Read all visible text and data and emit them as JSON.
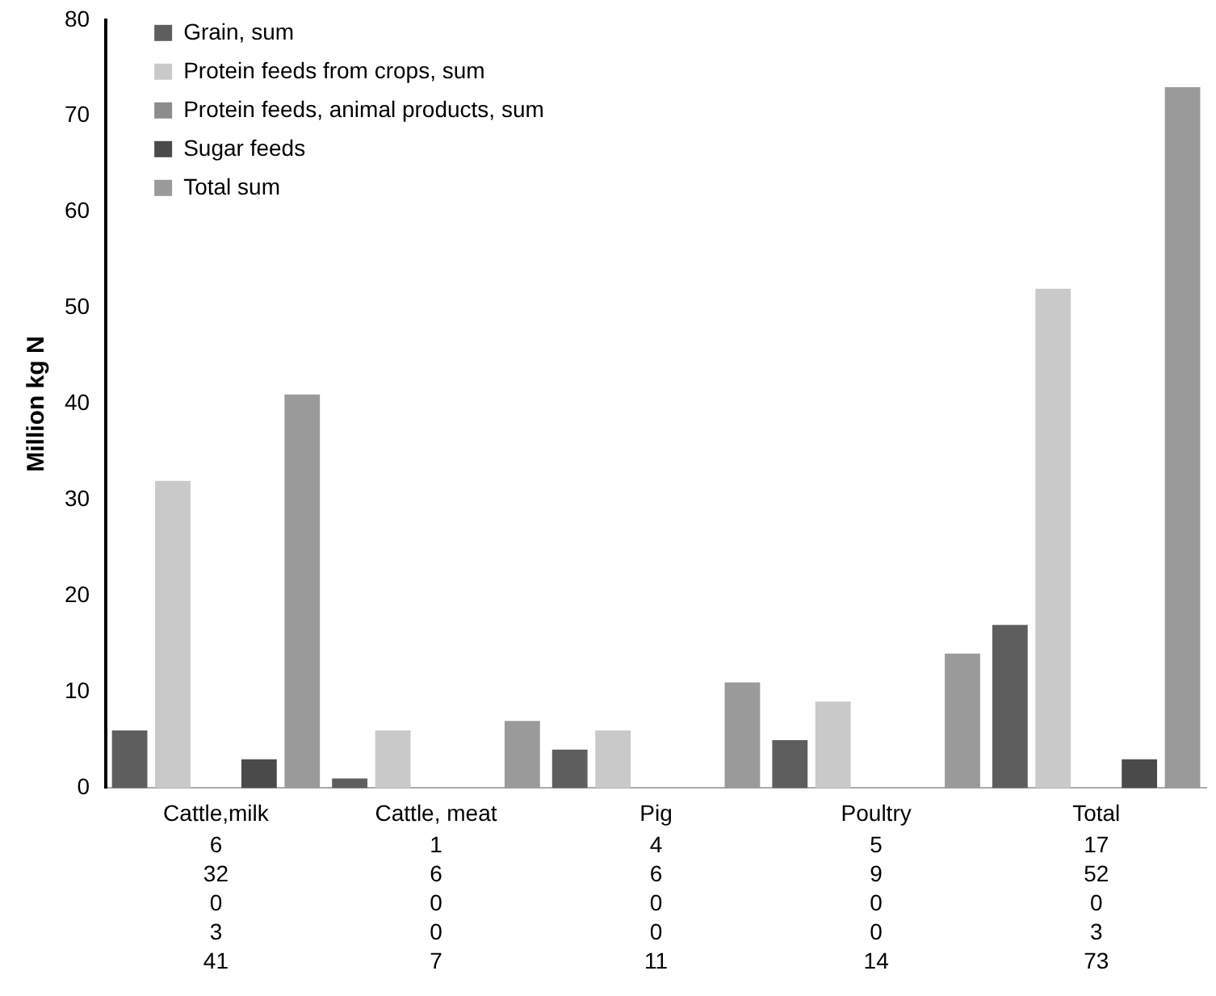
{
  "chart_data": {
    "type": "bar",
    "ylabel": "Million kg N",
    "categories": [
      "Cattle,milk",
      "Cattle, meat",
      "Pig",
      "Poultry",
      "Total"
    ],
    "series": [
      {
        "name": "Grain, sum",
        "color": "#5e5e5e",
        "values": [
          6,
          1,
          4,
          5,
          17
        ]
      },
      {
        "name": "Protein feeds from crops, sum",
        "color": "#c9c9c9",
        "values": [
          32,
          6,
          6,
          9,
          52
        ]
      },
      {
        "name": "Protein feeds, animal products, sum",
        "color": "#8c8c8c",
        "values": [
          0,
          0,
          0,
          0,
          0
        ]
      },
      {
        "name": "Sugar feeds",
        "color": "#4a4a4a",
        "values": [
          3,
          0,
          0,
          0,
          3
        ]
      },
      {
        "name": "Total sum",
        "color": "#9a9a9a",
        "values": [
          41,
          7,
          11,
          14,
          73
        ]
      }
    ],
    "ylim": [
      0,
      80
    ],
    "yticks": [
      0,
      10,
      20,
      30,
      40,
      50,
      60,
      70,
      80
    ],
    "grid": false,
    "legend": "top left",
    "data_labels": true
  }
}
